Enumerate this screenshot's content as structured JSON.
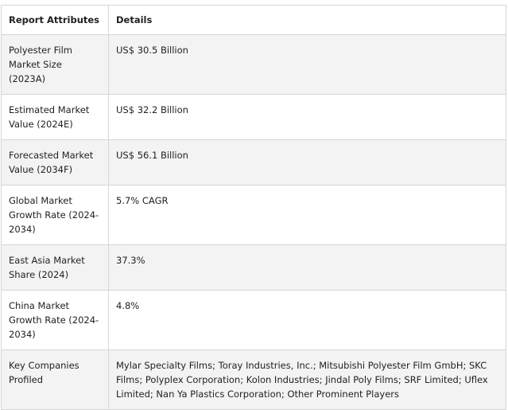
{
  "table": {
    "headers": [
      "Report Attributes",
      "Details"
    ],
    "rows": [
      {
        "attribute": "Polyester Film Market Size (2023A)",
        "details": "US$ 30.5 Billion"
      },
      {
        "attribute": "Estimated Market Value (2024E)",
        "details": "US$ 32.2 Billion"
      },
      {
        "attribute": "Forecasted Market Value (2034F)",
        "details": "US$ 56.1 Billion"
      },
      {
        "attribute": "Global Market Growth Rate (2024-2034)",
        "details": "5.7% CAGR"
      },
      {
        "attribute": "East Asia Market Share (2024)",
        "details": "37.3%"
      },
      {
        "attribute": "China Market Growth Rate (2024-2034)",
        "details": "4.8%"
      },
      {
        "attribute": "Key Companies Profiled",
        "details": "Mylar Specialty Films; Toray Industries, Inc.; Mitsubishi Polyester Film GmbH; SKC Films; Polyplex Corporation; Kolon Industries; Jindal Poly Films; SRF Limited; Uflex Limited; Nan Ya Plastics Corporation; Other Prominent Players"
      }
    ]
  },
  "colors": {
    "border": "#d6d6d6",
    "stripe": "#f3f3f3",
    "text": "#222222"
  }
}
